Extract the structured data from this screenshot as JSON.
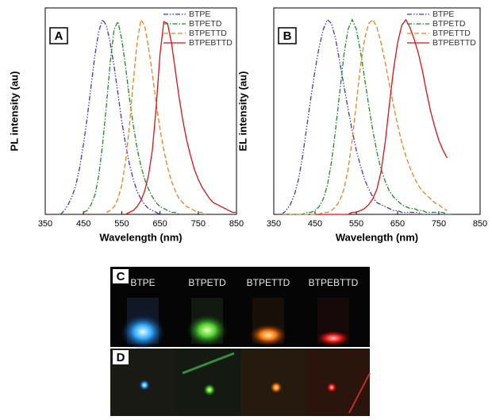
{
  "chart_data": [
    {
      "type": "line",
      "panel_label": "A",
      "xlabel": "Wavelength (nm)",
      "ylabel": "PL intensity (au)",
      "xlim": [
        350,
        850
      ],
      "xticks": [
        350,
        450,
        550,
        650,
        750,
        850
      ],
      "ylim": [
        0,
        1.06
      ],
      "legend": "upper right",
      "x": [
        390,
        400,
        410,
        420,
        430,
        440,
        450,
        460,
        470,
        480,
        490,
        500,
        510,
        520,
        530,
        540,
        550,
        560,
        570,
        580,
        590,
        600,
        610,
        620,
        630,
        640,
        650,
        660,
        670,
        680,
        690,
        700,
        710,
        720,
        730,
        740,
        750,
        760,
        770,
        780,
        790,
        800,
        810,
        820,
        830,
        840,
        850
      ],
      "series": [
        {
          "name": "BTPE",
          "color": "#3a3ac8",
          "dash": "dash-dot-dot",
          "values": [
            0.0,
            0.02,
            0.05,
            0.09,
            0.15,
            0.24,
            0.36,
            0.5,
            0.66,
            0.82,
            0.94,
            1.0,
            0.97,
            0.88,
            0.76,
            0.62,
            0.48,
            0.36,
            0.26,
            0.18,
            0.12,
            0.08,
            0.05,
            0.03,
            0.02,
            0.01,
            0.0,
            null,
            null,
            null,
            null,
            null,
            null,
            null,
            null,
            null,
            null,
            null,
            null,
            null,
            null,
            null,
            null,
            null,
            null,
            null,
            null
          ]
        },
        {
          "name": "BTPETD",
          "color": "#1f8a2a",
          "dash": "dash-dot",
          "values": [
            null,
            null,
            null,
            null,
            null,
            null,
            0.01,
            0.02,
            0.05,
            0.1,
            0.2,
            0.36,
            0.56,
            0.78,
            0.95,
            0.99,
            0.9,
            0.76,
            0.6,
            0.46,
            0.34,
            0.25,
            0.18,
            0.13,
            0.09,
            0.06,
            0.04,
            0.03,
            0.02,
            0.01,
            0.01,
            0.0,
            null,
            null,
            null,
            null,
            null,
            null,
            null,
            null,
            null,
            null,
            null,
            null,
            null,
            null,
            null
          ]
        },
        {
          "name": "BTPETTD",
          "color": "#f08020",
          "dash": "dashed",
          "values": [
            null,
            null,
            null,
            null,
            null,
            null,
            null,
            null,
            null,
            null,
            null,
            null,
            0.01,
            0.02,
            0.04,
            0.08,
            0.15,
            0.27,
            0.45,
            0.68,
            0.88,
            1.0,
            0.97,
            0.86,
            0.72,
            0.57,
            0.44,
            0.33,
            0.24,
            0.17,
            0.12,
            0.08,
            0.06,
            0.04,
            0.03,
            0.02,
            0.01,
            0.01,
            0.0,
            null,
            null,
            null,
            null,
            null,
            null,
            null,
            null
          ]
        },
        {
          "name": "BTPEBTTD",
          "color": "#e01010",
          "dash": "solid",
          "values": [
            null,
            null,
            null,
            null,
            null,
            null,
            null,
            null,
            null,
            null,
            null,
            null,
            null,
            null,
            null,
            null,
            null,
            0.0,
            0.01,
            0.02,
            0.04,
            0.07,
            0.12,
            0.2,
            0.33,
            0.55,
            0.82,
            0.99,
            0.98,
            0.88,
            0.74,
            0.6,
            0.48,
            0.38,
            0.3,
            0.23,
            0.18,
            0.14,
            0.11,
            0.08,
            0.06,
            0.05,
            0.04,
            0.03,
            0.02,
            0.01,
            0.01
          ]
        }
      ]
    },
    {
      "type": "line",
      "panel_label": "B",
      "xlabel": "Wavelength (nm)",
      "ylabel": "EL intensity (au)",
      "xlim": [
        350,
        850
      ],
      "xticks": [
        350,
        450,
        550,
        650,
        750,
        850
      ],
      "ylim": [
        0,
        1.06
      ],
      "legend": "upper right",
      "x": [
        370,
        380,
        390,
        400,
        410,
        420,
        430,
        440,
        450,
        460,
        470,
        480,
        490,
        500,
        510,
        520,
        530,
        540,
        550,
        560,
        570,
        580,
        590,
        600,
        610,
        620,
        630,
        640,
        650,
        660,
        670,
        680,
        690,
        700,
        710,
        720,
        730,
        740,
        750,
        760,
        770,
        780
      ],
      "series": [
        {
          "name": "BTPE",
          "color": "#3a3ac8",
          "dash": "dash-dot-dot",
          "values": [
            0.0,
            0.02,
            0.05,
            0.1,
            0.18,
            0.3,
            0.45,
            0.6,
            0.74,
            0.86,
            0.95,
            1.0,
            0.98,
            0.9,
            0.78,
            0.66,
            0.54,
            0.43,
            0.33,
            0.25,
            0.18,
            0.13,
            0.09,
            0.06,
            0.05,
            0.04,
            0.03,
            0.02,
            0.02,
            0.01,
            0.01,
            0.01,
            0.01,
            0.01,
            0.0,
            0.0,
            0.0,
            0.0,
            0.0,
            0.0,
            0.0,
            0.0
          ]
        },
        {
          "name": "BTPETD",
          "color": "#1f8a2a",
          "dash": "dash-dot",
          "values": [
            0,
            0,
            0,
            0,
            0,
            0,
            0.01,
            0.01,
            0.02,
            0.04,
            0.08,
            0.15,
            0.27,
            0.44,
            0.63,
            0.82,
            0.95,
            1.0,
            0.95,
            0.84,
            0.7,
            0.56,
            0.43,
            0.32,
            0.23,
            0.17,
            0.12,
            0.09,
            0.07,
            0.05,
            0.04,
            0.03,
            0.03,
            0.02,
            0.02,
            0.01,
            0.01,
            0.01,
            0.01,
            0.01,
            0.0,
            0.0
          ]
        },
        {
          "name": "BTPETTD",
          "color": "#f08020",
          "dash": "dashed",
          "values": [
            0,
            0,
            0,
            0,
            0,
            0,
            0,
            0,
            0,
            0,
            0.01,
            0.01,
            0.02,
            0.04,
            0.07,
            0.13,
            0.23,
            0.38,
            0.57,
            0.76,
            0.9,
            0.98,
            1.0,
            0.96,
            0.88,
            0.78,
            0.67,
            0.56,
            0.46,
            0.37,
            0.3,
            0.24,
            0.19,
            0.15,
            0.12,
            0.1,
            0.08,
            0.06,
            0.05,
            0.03,
            0.02,
            null
          ]
        },
        {
          "name": "BTPEBTTD",
          "color": "#e01010",
          "dash": "solid",
          "values": [
            null,
            null,
            null,
            null,
            null,
            null,
            null,
            null,
            0,
            0,
            0,
            0,
            0,
            0,
            0,
            0,
            0,
            0.01,
            0.01,
            0.02,
            0.03,
            0.05,
            0.08,
            0.13,
            0.22,
            0.37,
            0.56,
            0.74,
            0.88,
            0.97,
            1.0,
            0.96,
            0.9,
            0.83,
            0.74,
            0.63,
            0.53,
            0.45,
            0.38,
            0.33,
            0.29,
            null
          ]
        }
      ]
    }
  ],
  "photos": {
    "panel_c": {
      "label": "C",
      "captions": [
        "BTPE",
        "BTPETD",
        "BTPETTD",
        "BTPEBTTD"
      ]
    },
    "panel_d": {
      "label": "D"
    }
  }
}
